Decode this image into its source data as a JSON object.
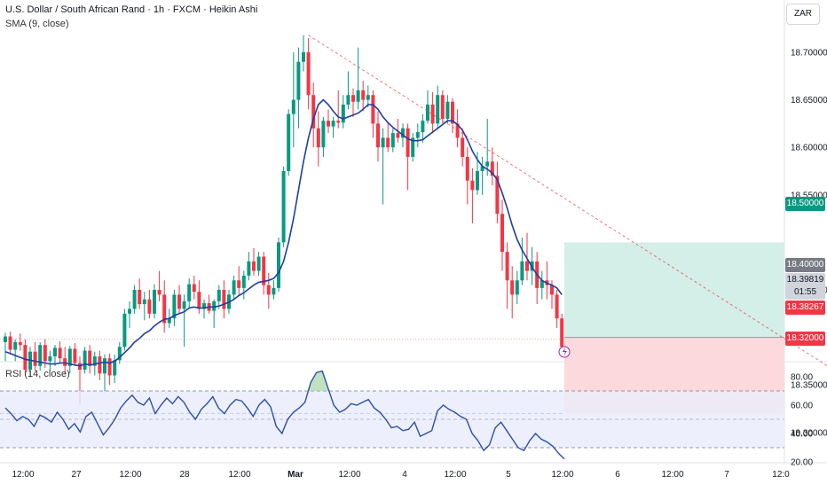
{
  "header": {
    "title": "U.S. Dollar / South African Rand · 1h · FXCM · Heikin Ashi",
    "indicator": "SMA (9, close)"
  },
  "currency_button": "ZAR",
  "rsi_pane": {
    "title": "RSI (14, close)",
    "upper_band": 70,
    "lower_band": 30,
    "ticks": [
      "80.00",
      "60.00",
      "40.00",
      "20.00"
    ]
  },
  "price_axis": {
    "ticks": [
      "18.70000",
      "18.65000",
      "18.60000",
      "18.55000",
      "18.45000",
      "18.35000",
      "18.30000"
    ]
  },
  "price_tags": {
    "target": "18.50000",
    "entry": "18.40000",
    "current": "18.39819",
    "countdown": "01:55",
    "bid": "18.38267",
    "stop": "18.32000"
  },
  "time_axis": {
    "labels": [
      "12:00",
      "27",
      "12:00",
      "28",
      "12:00",
      "Mar",
      "12:00",
      "4",
      "12:00",
      "5",
      "12:00",
      "6",
      "12:00",
      "7",
      "12:0"
    ]
  },
  "colors": {
    "up": "#089981",
    "down": "#f23645",
    "sma": "#1e3fa0",
    "rsi": "#2c4fa8",
    "target_zone": "#d4eee8",
    "stop_zone": "#fcd9dd",
    "target_tag": "#089981",
    "entry_tag": "#787b86",
    "bid_tag": "#f23645"
  },
  "chart_data": [
    {
      "type": "candlestick",
      "title": "U.S. Dollar / South African Rand · 1h · FXCM · Heikin Ashi",
      "yaxis_range": [
        18.3,
        18.73
      ],
      "series": [
        {
          "name": "SMA (9, close)",
          "type": "line"
        }
      ],
      "candles": [
        [
          18.395,
          18.405,
          18.375,
          18.401
        ],
        [
          18.401,
          18.406,
          18.382,
          18.387
        ],
        [
          18.387,
          18.398,
          18.375,
          18.395
        ],
        [
          18.395,
          18.404,
          18.386,
          18.392
        ],
        [
          18.392,
          18.398,
          18.36,
          18.366
        ],
        [
          18.366,
          18.39,
          18.358,
          18.385
        ],
        [
          18.385,
          18.395,
          18.365,
          18.37
        ],
        [
          18.37,
          18.395,
          18.365,
          18.392
        ],
        [
          18.392,
          18.398,
          18.368,
          18.375
        ],
        [
          18.375,
          18.386,
          18.365,
          18.38
        ],
        [
          18.38,
          18.392,
          18.37,
          18.389
        ],
        [
          18.389,
          18.396,
          18.372,
          18.378
        ],
        [
          18.378,
          18.39,
          18.362,
          18.37
        ],
        [
          18.37,
          18.391,
          18.362,
          18.388
        ],
        [
          18.388,
          18.394,
          18.37,
          18.373
        ],
        [
          18.373,
          18.38,
          18.33,
          18.366
        ],
        [
          18.366,
          18.39,
          18.362,
          18.386
        ],
        [
          18.386,
          18.392,
          18.362,
          18.37
        ],
        [
          18.37,
          18.385,
          18.36,
          18.38
        ],
        [
          18.38,
          18.386,
          18.355,
          18.362
        ],
        [
          18.362,
          18.382,
          18.342,
          18.378
        ],
        [
          18.378,
          18.383,
          18.35,
          18.36
        ],
        [
          18.36,
          18.382,
          18.352,
          18.376
        ],
        [
          18.376,
          18.395,
          18.372,
          18.39
        ],
        [
          18.39,
          18.43,
          18.386,
          18.425
        ],
        [
          18.425,
          18.438,
          18.41,
          18.43
        ],
        [
          18.43,
          18.455,
          18.425,
          18.45
        ],
        [
          18.45,
          18.462,
          18.43,
          18.435
        ],
        [
          18.435,
          18.448,
          18.418,
          18.44
        ],
        [
          18.44,
          18.45,
          18.42,
          18.425
        ],
        [
          18.425,
          18.456,
          18.42,
          18.45
        ],
        [
          18.45,
          18.47,
          18.438,
          18.445
        ],
        [
          18.445,
          18.46,
          18.405,
          18.415
        ],
        [
          18.415,
          18.43,
          18.41,
          18.42
        ],
        [
          18.42,
          18.45,
          18.412,
          18.445
        ],
        [
          18.445,
          18.455,
          18.425,
          18.43
        ],
        [
          18.43,
          18.445,
          18.39,
          18.438
        ],
        [
          18.438,
          18.462,
          18.43,
          18.456
        ],
        [
          18.456,
          18.465,
          18.44,
          18.448
        ],
        [
          18.448,
          18.46,
          18.425,
          18.43
        ],
        [
          18.43,
          18.44,
          18.42,
          18.436
        ],
        [
          18.436,
          18.445,
          18.425,
          18.428
        ],
        [
          18.428,
          18.44,
          18.41,
          18.438
        ],
        [
          18.438,
          18.455,
          18.43,
          18.45
        ],
        [
          18.45,
          18.46,
          18.42,
          18.43
        ],
        [
          18.43,
          18.45,
          18.425,
          18.445
        ],
        [
          18.445,
          18.465,
          18.44,
          18.46
        ],
        [
          18.46,
          18.475,
          18.445,
          18.452
        ],
        [
          18.452,
          18.47,
          18.44,
          18.465
        ],
        [
          18.465,
          18.49,
          18.46,
          18.48
        ],
        [
          18.48,
          18.494,
          18.465,
          18.47
        ],
        [
          18.47,
          18.49,
          18.465,
          18.485
        ],
        [
          18.485,
          18.49,
          18.445,
          18.455
        ],
        [
          18.455,
          18.468,
          18.43,
          18.445
        ],
        [
          18.445,
          18.46,
          18.44,
          18.452
        ],
        [
          18.452,
          18.505,
          18.448,
          18.5
        ],
        [
          18.5,
          18.58,
          18.495,
          18.575
        ],
        [
          18.575,
          18.64,
          18.57,
          18.635
        ],
        [
          18.635,
          18.7,
          18.6,
          18.65
        ],
        [
          18.65,
          18.705,
          18.62,
          18.69
        ],
        [
          18.69,
          18.718,
          18.68,
          18.7
        ],
        [
          18.7,
          18.715,
          18.64,
          18.655
        ],
        [
          18.655,
          18.668,
          18.6,
          18.62
        ],
        [
          18.62,
          18.638,
          18.58,
          18.6
        ],
        [
          18.6,
          18.632,
          18.59,
          18.628
        ],
        [
          18.628,
          18.64,
          18.615,
          18.622
        ],
        [
          18.622,
          18.632,
          18.61,
          18.628
        ],
        [
          18.628,
          18.66,
          18.62,
          18.626
        ],
        [
          18.626,
          18.655,
          18.62,
          18.645
        ],
        [
          18.645,
          18.68,
          18.64,
          18.655
        ],
        [
          18.655,
          18.662,
          18.632,
          18.648
        ],
        [
          18.648,
          18.705,
          18.64,
          18.66
        ],
        [
          18.66,
          18.67,
          18.638,
          18.65
        ],
        [
          18.65,
          18.665,
          18.642,
          18.655
        ],
        [
          18.655,
          18.66,
          18.61,
          18.625
        ],
        [
          18.625,
          18.638,
          18.585,
          18.6
        ],
        [
          18.6,
          18.62,
          18.54,
          18.61
        ],
        [
          18.61,
          18.625,
          18.595,
          18.6
        ],
        [
          18.6,
          18.62,
          18.595,
          18.615
        ],
        [
          18.615,
          18.63,
          18.605,
          18.61
        ],
        [
          18.61,
          18.625,
          18.6,
          18.62
        ],
        [
          18.62,
          18.625,
          18.555,
          18.59
        ],
        [
          18.59,
          18.615,
          18.585,
          18.61
        ],
        [
          18.61,
          18.625,
          18.6,
          18.616
        ],
        [
          18.616,
          18.635,
          18.605,
          18.628
        ],
        [
          18.628,
          18.66,
          18.625,
          18.645
        ],
        [
          18.645,
          18.658,
          18.615,
          18.625
        ],
        [
          18.625,
          18.665,
          18.62,
          18.655
        ],
        [
          18.655,
          18.66,
          18.625,
          18.63
        ],
        [
          18.63,
          18.655,
          18.625,
          18.648
        ],
        [
          18.648,
          18.652,
          18.615,
          18.625
        ],
        [
          18.625,
          18.64,
          18.6,
          18.61
        ],
        [
          18.61,
          18.62,
          18.58,
          18.59
        ],
        [
          18.59,
          18.6,
          18.54,
          18.565
        ],
        [
          18.565,
          18.578,
          18.52,
          18.555
        ],
        [
          18.555,
          18.595,
          18.55,
          18.575
        ],
        [
          18.575,
          18.59,
          18.55,
          18.58
        ],
        [
          18.58,
          18.63,
          18.57,
          18.585
        ],
        [
          18.585,
          18.6,
          18.56,
          18.57
        ],
        [
          18.57,
          18.585,
          18.52,
          18.53
        ],
        [
          18.53,
          18.545,
          18.47,
          18.49
        ],
        [
          18.49,
          18.5,
          18.43,
          18.46
        ],
        [
          18.46,
          18.475,
          18.42,
          18.445
        ],
        [
          18.445,
          18.47,
          18.435,
          18.46
        ],
        [
          18.46,
          18.505,
          18.455,
          18.48
        ],
        [
          18.48,
          18.51,
          18.46,
          18.47
        ],
        [
          18.47,
          18.495,
          18.455,
          18.48
        ],
        [
          18.48,
          18.49,
          18.435,
          18.452
        ],
        [
          18.452,
          18.47,
          18.44,
          18.46
        ],
        [
          18.46,
          18.48,
          18.44,
          18.455
        ],
        [
          18.455,
          18.46,
          18.43,
          18.445
        ],
        [
          18.445,
          18.45,
          18.41,
          18.42
        ],
        [
          18.42,
          18.425,
          18.382,
          18.39
        ]
      ],
      "sma": [
        18.385,
        18.383,
        18.381,
        18.379,
        18.377,
        18.376,
        18.375,
        18.374,
        18.373,
        18.372,
        18.372,
        18.373,
        18.373,
        18.372,
        18.371,
        18.37,
        18.372,
        18.371,
        18.372,
        18.373,
        18.374,
        18.373,
        18.375,
        18.379,
        18.384,
        18.389,
        18.395,
        18.399,
        18.404,
        18.407,
        18.412,
        18.416,
        18.419,
        18.42,
        18.423,
        18.425,
        18.427,
        18.431,
        18.432,
        18.431,
        18.431,
        18.432,
        18.432,
        18.433,
        18.435,
        18.437,
        18.44,
        18.444,
        18.447,
        18.451,
        18.455,
        18.458,
        18.459,
        18.46,
        18.462,
        18.468,
        18.48,
        18.5,
        18.525,
        18.555,
        18.585,
        18.61,
        18.63,
        18.645,
        18.65,
        18.645,
        18.638,
        18.632,
        18.63,
        18.632,
        18.634,
        18.636,
        18.64,
        18.645,
        18.645,
        18.64,
        18.632,
        18.626,
        18.621,
        18.617,
        18.613,
        18.609,
        18.607,
        18.607,
        18.608,
        18.612,
        18.616,
        18.62,
        18.624,
        18.628,
        18.628,
        18.624,
        18.618,
        18.608,
        18.596,
        18.587,
        18.58,
        18.577,
        18.573,
        18.566,
        18.552,
        18.536,
        18.518,
        18.503,
        18.492,
        18.483,
        18.474,
        18.466,
        18.46,
        18.457,
        18.455,
        18.452,
        18.445
      ],
      "trendline": {
        "from": [
          18.718,
          61
        ],
        "to": [
          18.32,
          179
        ]
      },
      "support_level": 18.32,
      "position": {
        "entry": 18.4,
        "target": 18.5,
        "stop": 18.32
      }
    },
    {
      "type": "line",
      "title": "RSI (14, close)",
      "yaxis_range": [
        18,
        84
      ],
      "bands": {
        "upper": 70,
        "middle": 50,
        "lower": 30
      },
      "series": [
        {
          "name": "RSI (14, close)",
          "values": [
            58,
            54,
            49,
            52,
            50,
            45,
            53,
            51,
            48,
            55,
            50,
            43,
            47,
            41,
            52,
            55,
            47,
            39,
            44,
            50,
            58,
            63,
            67,
            62,
            60,
            65,
            54,
            60,
            65,
            61,
            66,
            62,
            55,
            50,
            57,
            61,
            66,
            58,
            54,
            60,
            64,
            63,
            58,
            52,
            60,
            64,
            59,
            45,
            40,
            50,
            55,
            58,
            62,
            76,
            83,
            84,
            72,
            60,
            55,
            57,
            61,
            60,
            62,
            64,
            58,
            55,
            50,
            44,
            45,
            42,
            43,
            48,
            38,
            40,
            42,
            56,
            60,
            57,
            55,
            52,
            50,
            40,
            35,
            28,
            32,
            44,
            48,
            42,
            36,
            30,
            28,
            35,
            40,
            36,
            34,
            31,
            26,
            22
          ]
        }
      ]
    }
  ]
}
